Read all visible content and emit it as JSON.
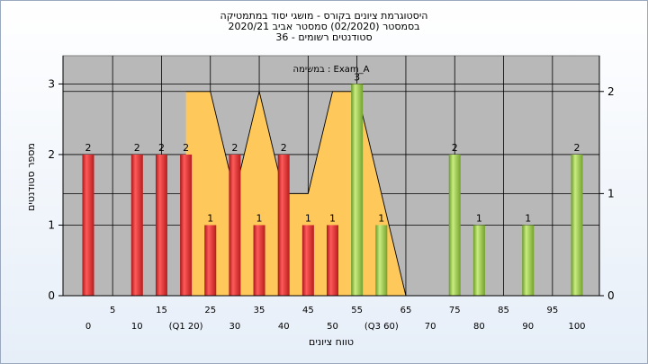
{
  "title_lines": [
    "היסטוגרמת ציונים בקורס - מושגי יסוד במתמטיקה",
    "בסמסטר  (02/2020)  סמסטר אביב 2020/21",
    "סטודנטים רשומים - 36"
  ],
  "legend_text": "Exam_A : במשימה",
  "chart_data": {
    "type": "bar",
    "title": "היסטוגרמת ציונים בקורס - מושגי יסוד במתמטיקה",
    "xlabel": "טווח ציונים",
    "ylabel": "מספר סטודנטים",
    "ylim": [
      0,
      3.4
    ],
    "y2lim": [
      0,
      2.35
    ],
    "yticks": [
      0,
      1,
      2,
      3
    ],
    "y2ticks": [
      0,
      1,
      2
    ],
    "grid": true,
    "colors": {
      "plot_bg": "#b8b8b8",
      "red": "#e83030",
      "green": "#8fc040",
      "area": "#ffc85a",
      "grid": "#000000"
    },
    "xtick_labels": [
      {
        "x": 0,
        "label": "0",
        "row": 1
      },
      {
        "x": 5,
        "label": "5",
        "row": 0
      },
      {
        "x": 10,
        "label": "10",
        "row": 1
      },
      {
        "x": 15,
        "label": "15",
        "row": 0
      },
      {
        "x": 20,
        "label": "(Q1 20)",
        "row": 1
      },
      {
        "x": 25,
        "label": "25",
        "row": 0
      },
      {
        "x": 30,
        "label": "30",
        "row": 1
      },
      {
        "x": 35,
        "label": "35",
        "row": 0
      },
      {
        "x": 40,
        "label": "40",
        "row": 1
      },
      {
        "x": 45,
        "label": "45",
        "row": 0
      },
      {
        "x": 50,
        "label": "50",
        "row": 1
      },
      {
        "x": 55,
        "label": "55",
        "row": 0
      },
      {
        "x": 60,
        "label": "(Q3 60)",
        "row": 1
      },
      {
        "x": 65,
        "label": "65",
        "row": 0
      },
      {
        "x": 70,
        "label": "70",
        "row": 1
      },
      {
        "x": 75,
        "label": "75",
        "row": 0
      },
      {
        "x": 80,
        "label": "80",
        "row": 1
      },
      {
        "x": 85,
        "label": "85",
        "row": 0
      },
      {
        "x": 90,
        "label": "90",
        "row": 1
      },
      {
        "x": 95,
        "label": "95",
        "row": 0
      },
      {
        "x": 100,
        "label": "100",
        "row": 1
      }
    ],
    "bars": [
      {
        "x": 0,
        "value": 2,
        "color": "red"
      },
      {
        "x": 10,
        "value": 2,
        "color": "red"
      },
      {
        "x": 15,
        "value": 2,
        "color": "red"
      },
      {
        "x": 20,
        "value": 2,
        "color": "red"
      },
      {
        "x": 25,
        "value": 1,
        "color": "red"
      },
      {
        "x": 30,
        "value": 2,
        "color": "red"
      },
      {
        "x": 35,
        "value": 1,
        "color": "red"
      },
      {
        "x": 40,
        "value": 2,
        "color": "red"
      },
      {
        "x": 45,
        "value": 1,
        "color": "red"
      },
      {
        "x": 50,
        "value": 1,
        "color": "red"
      },
      {
        "x": 55,
        "value": 3,
        "color": "green"
      },
      {
        "x": 60,
        "value": 1,
        "color": "green"
      },
      {
        "x": 75,
        "value": 2,
        "color": "green"
      },
      {
        "x": 80,
        "value": 1,
        "color": "green"
      },
      {
        "x": 90,
        "value": 1,
        "color": "green"
      },
      {
        "x": 100,
        "value": 2,
        "color": "green"
      }
    ],
    "area_series": {
      "axis": "y2",
      "points": [
        {
          "x": 20,
          "y": 2
        },
        {
          "x": 25,
          "y": 2
        },
        {
          "x": 30,
          "y": 1
        },
        {
          "x": 35,
          "y": 2
        },
        {
          "x": 40,
          "y": 1
        },
        {
          "x": 45,
          "y": 1
        },
        {
          "x": 50,
          "y": 2
        },
        {
          "x": 55,
          "y": 2
        },
        {
          "x": 60,
          "y": 1
        },
        {
          "x": 65,
          "y": 0
        }
      ]
    }
  }
}
